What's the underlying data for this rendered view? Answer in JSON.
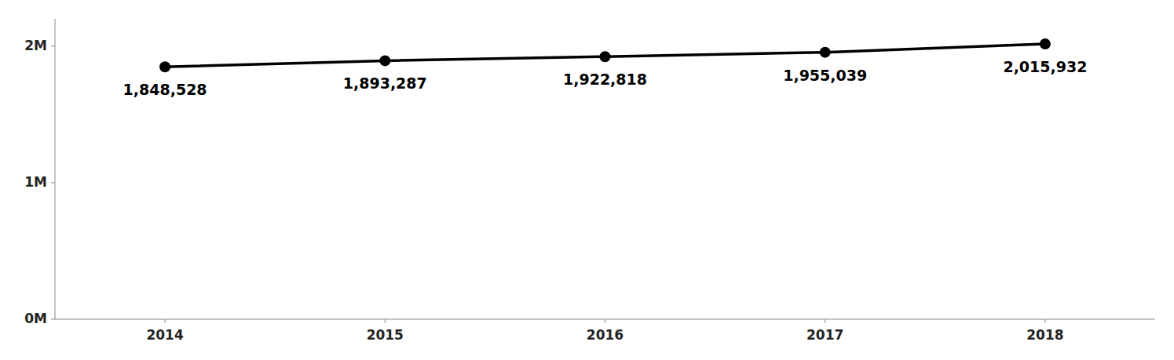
{
  "chart_data": {
    "type": "line",
    "x": [
      2014,
      2015,
      2016,
      2017,
      2018
    ],
    "values": [
      1848528,
      1893287,
      1922818,
      1955039,
      2015932
    ],
    "value_labels": [
      "1,848,528",
      "1,893,287",
      "1,922,818",
      "1,955,039",
      "2,015,932"
    ],
    "data_labels": true,
    "color": "#000000",
    "marker": "circle",
    "xlim": [
      2013.5,
      2018.5
    ],
    "xticks": [
      2014,
      2015,
      2016,
      2017,
      2018
    ],
    "ylim": [
      0,
      2200000
    ],
    "yticks": [
      {
        "value": 0,
        "label": "0M"
      },
      {
        "value": 1000000,
        "label": "1M"
      },
      {
        "value": 2000000,
        "label": "2M"
      }
    ],
    "grid": false
  }
}
